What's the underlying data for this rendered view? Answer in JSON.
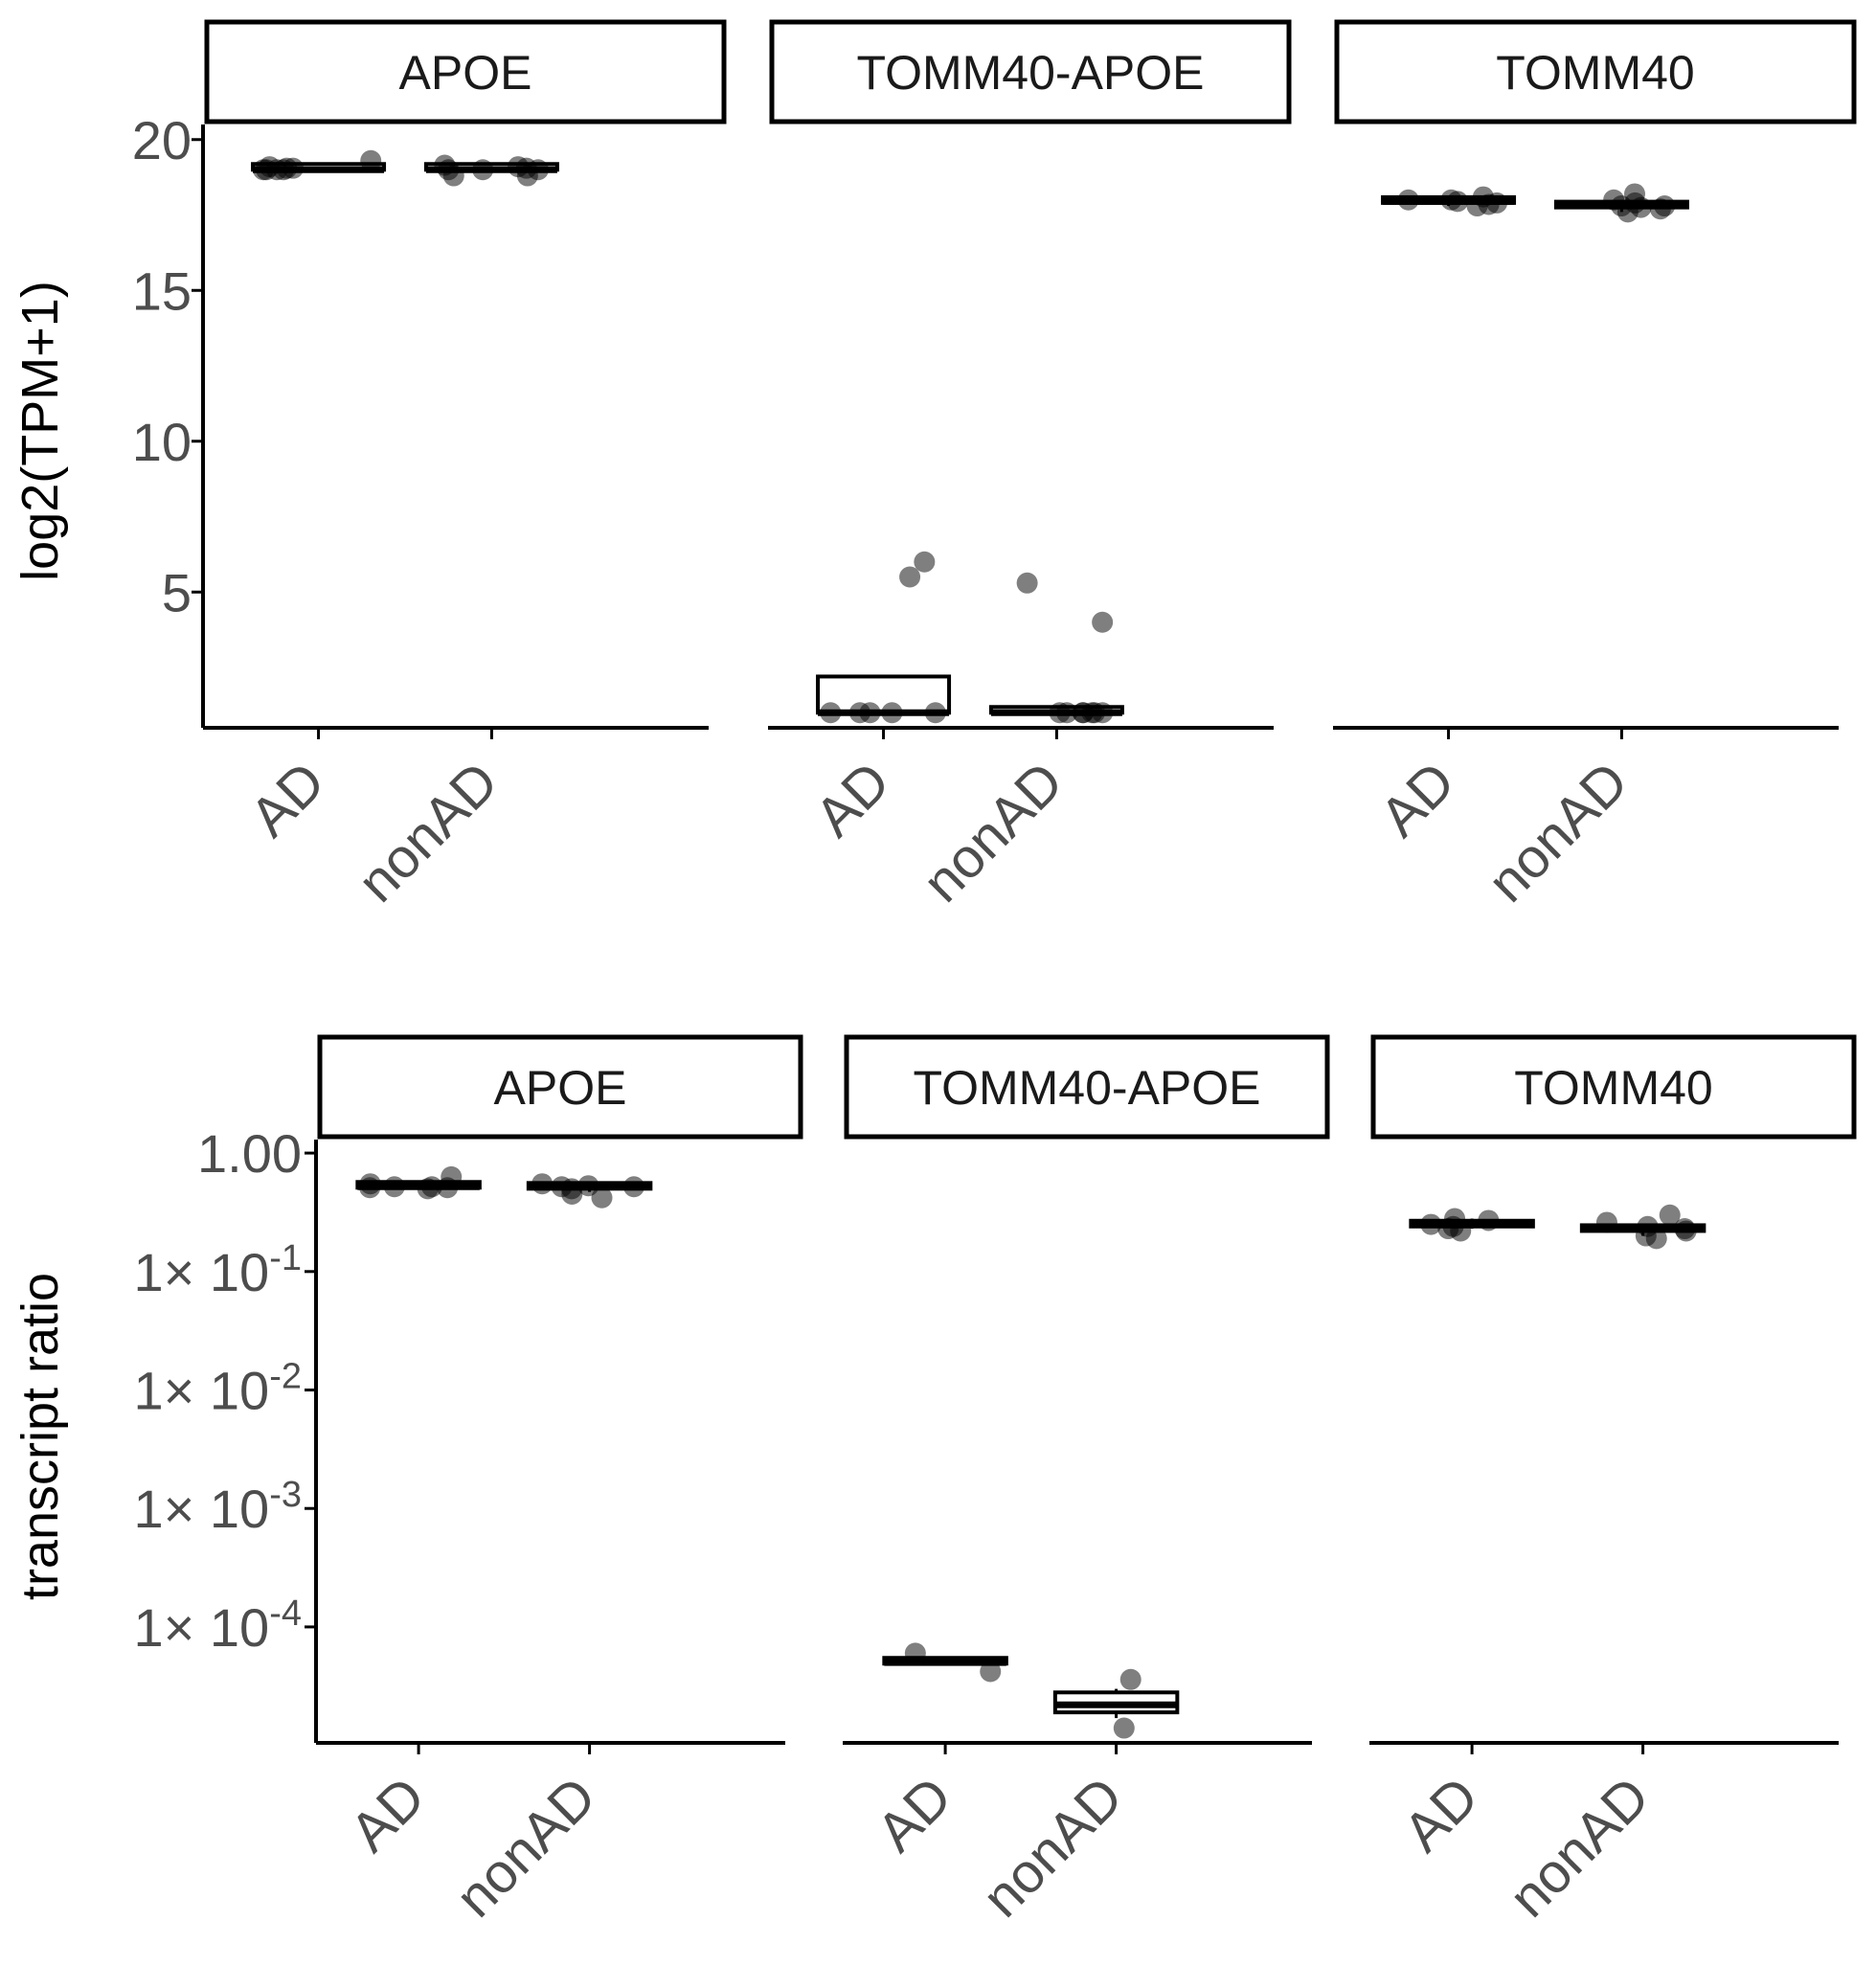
{
  "chart_data": [
    {
      "type": "box",
      "ylabel": "log2(TPM+1)",
      "yscale": "linear",
      "ylim": [
        0.5,
        20.5
      ],
      "yticks": [
        {
          "value": 5,
          "label": "5"
        },
        {
          "value": 10,
          "label": "10"
        },
        {
          "value": 15,
          "label": "15"
        },
        {
          "value": 20,
          "label": "20"
        }
      ],
      "categories": [
        "AD",
        "nonAD"
      ],
      "facets": [
        {
          "title": "APOE",
          "groups": [
            {
              "category": "AD",
              "min": 19.0,
              "q1": 19.0,
              "median": 19.0,
              "q3": 19.05,
              "max": 19.1,
              "points": [
                19.0,
                19.0,
                19.0,
                19.05,
                19.05,
                19.1,
                19.3,
                19.0
              ]
            },
            {
              "category": "nonAD",
              "min": 18.9,
              "q1": 19.0,
              "median": 19.0,
              "q3": 19.05,
              "max": 19.1,
              "points": [
                19.0,
                19.1,
                19.15,
                19.0,
                18.8,
                18.8,
                19.05,
                19.0
              ]
            }
          ]
        },
        {
          "title": "TOMM40-APOE",
          "groups": [
            {
              "category": "AD",
              "min": 1.0,
              "q1": 1.0,
              "median": 1.0,
              "q3": 2.2,
              "max": 2.2,
              "points": [
                1.0,
                1.0,
                1.0,
                1.0,
                1.0,
                6.0,
                5.5
              ]
            },
            {
              "category": "nonAD",
              "min": 1.0,
              "q1": 1.0,
              "median": 1.0,
              "q3": 1.0,
              "max": 1.0,
              "points": [
                1.0,
                1.0,
                1.0,
                1.0,
                1.0,
                1.0,
                1.0,
                4.0,
                5.3
              ]
            }
          ]
        },
        {
          "title": "TOMM40",
          "groups": [
            {
              "category": "AD",
              "min": 17.8,
              "q1": 17.9,
              "median": 17.95,
              "q3": 18.0,
              "max": 18.1,
              "points": [
                17.8,
                17.85,
                18.0,
                18.0,
                18.1,
                17.9,
                17.95
              ]
            },
            {
              "category": "nonAD",
              "min": 17.6,
              "q1": 17.75,
              "median": 17.8,
              "q3": 17.9,
              "max": 18.0,
              "points": [
                17.6,
                17.7,
                17.8,
                17.9,
                18.0,
                18.2,
                17.8,
                17.75
              ]
            }
          ]
        }
      ]
    },
    {
      "type": "box",
      "ylabel": "transcript ratio",
      "yscale": "log10",
      "ylim": [
        1.05e-05,
        1.3
      ],
      "yticks": [
        {
          "value": 0.0001,
          "mant": "1×",
          "base": "10",
          "exp": "-4"
        },
        {
          "value": 0.001,
          "mant": "1×",
          "base": "10",
          "exp": "-3"
        },
        {
          "value": 0.01,
          "mant": "1×",
          "base": "10",
          "exp": "-2"
        },
        {
          "value": 0.1,
          "mant": "1×",
          "base": "10",
          "exp": "-1"
        },
        {
          "value": 1.0,
          "label": "1.00"
        }
      ],
      "categories": [
        "AD",
        "nonAD"
      ],
      "facets": [
        {
          "title": "APOE",
          "groups": [
            {
              "category": "AD",
              "min": 0.5,
              "q1": 0.51,
              "median": 0.52,
              "q3": 0.53,
              "max": 0.55,
              "points": [
                0.52,
                0.5,
                0.51,
                0.55,
                0.63,
                0.52,
                0.51
              ]
            },
            {
              "category": "nonAD",
              "min": 0.47,
              "q1": 0.5,
              "median": 0.52,
              "q3": 0.53,
              "max": 0.55,
              "points": [
                0.52,
                0.55,
                0.5,
                0.45,
                0.42,
                0.53,
                0.52
              ]
            }
          ]
        },
        {
          "title": "TOMM40-APOE",
          "groups": [
            {
              "category": "AD",
              "min": 4.8e-05,
              "q1": 4.9e-05,
              "median": 5e-05,
              "q3": 5.2e-05,
              "max": 5.2e-05,
              "points": [
                6e-05,
                4.2e-05
              ]
            },
            {
              "category": "nonAD",
              "min": 1.7e-05,
              "q1": 1.9e-05,
              "median": 2.2e-05,
              "q3": 2.8e-05,
              "max": 3e-05,
              "points": [
                3.6e-05,
                1.4e-05
              ]
            }
          ]
        },
        {
          "title": "TOMM40",
          "groups": [
            {
              "category": "AD",
              "min": 0.23,
              "q1": 0.24,
              "median": 0.25,
              "q3": 0.26,
              "max": 0.28,
              "points": [
                0.23,
                0.24,
                0.27,
                0.28,
                0.22,
                0.25
              ]
            },
            {
              "category": "nonAD",
              "min": 0.2,
              "q1": 0.22,
              "median": 0.23,
              "q3": 0.24,
              "max": 0.25,
              "points": [
                0.3,
                0.26,
                0.2,
                0.19,
                0.22,
                0.24,
                0.23
              ]
            }
          ]
        }
      ]
    }
  ]
}
